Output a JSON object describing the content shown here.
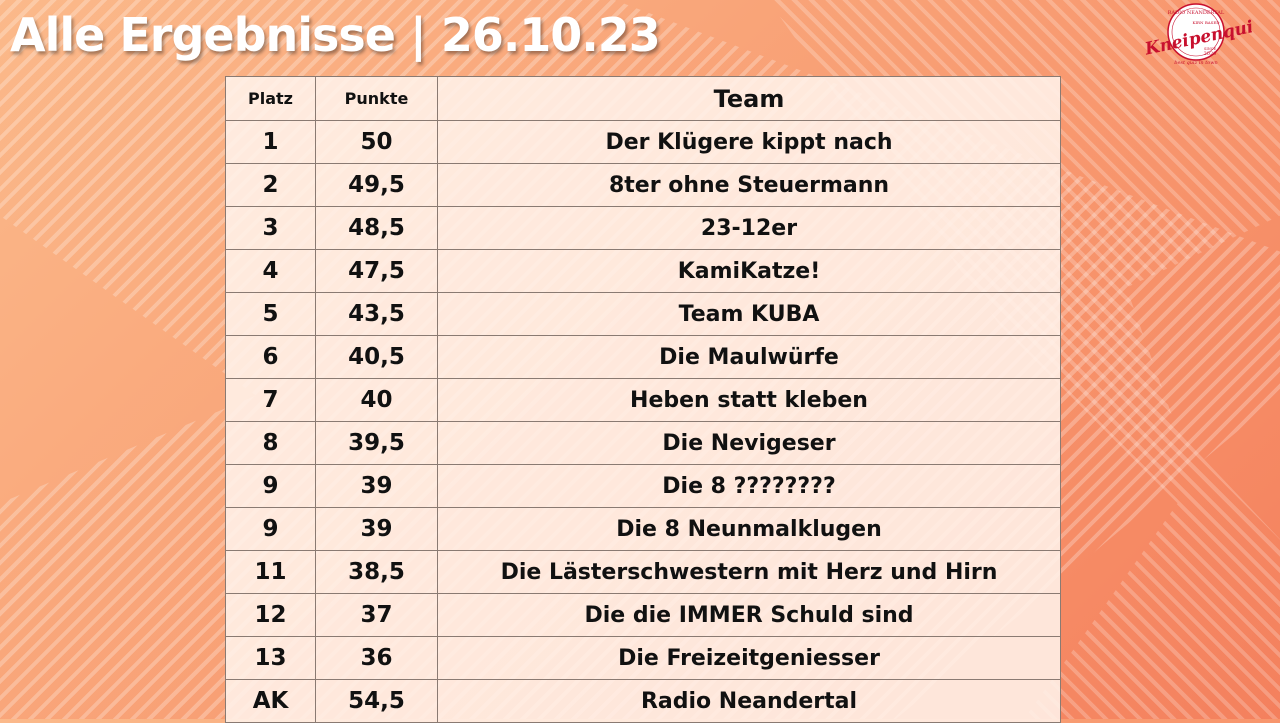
{
  "slide": {
    "title": "Alle Ergebnisse | 26.10.23"
  },
  "logo": {
    "name": "Kneipenquiz",
    "arc_top": "RADIO NEANDERTAL",
    "badge": "KIRN BASED",
    "since_label": "SINCE",
    "since_year": "2020",
    "arc_bottom": "best quiz in town"
  },
  "colors": {
    "background_light": "#fbb98a",
    "background_dark": "#f4805d",
    "logo_red": "#c8102e"
  },
  "table": {
    "headers": {
      "platz": "Platz",
      "punkte": "Punkte",
      "team": "Team"
    },
    "rows": [
      {
        "platz": "1",
        "punkte": "50",
        "team": "Der Klügere kippt nach"
      },
      {
        "platz": "2",
        "punkte": "49,5",
        "team": "8ter ohne Steuermann"
      },
      {
        "platz": "3",
        "punkte": "48,5",
        "team": "23-12er"
      },
      {
        "platz": "4",
        "punkte": "47,5",
        "team": "KamiKatze!"
      },
      {
        "platz": "5",
        "punkte": "43,5",
        "team": "Team KUBA"
      },
      {
        "platz": "6",
        "punkte": "40,5",
        "team": "Die Maulwürfe"
      },
      {
        "platz": "7",
        "punkte": "40",
        "team": "Heben statt kleben"
      },
      {
        "platz": "8",
        "punkte": "39,5",
        "team": "Die Nevigeser"
      },
      {
        "platz": "9",
        "punkte": "39",
        "team": "Die 8 ????????"
      },
      {
        "platz": "9",
        "punkte": "39",
        "team": "Die 8 Neunmalklugen"
      },
      {
        "platz": "11",
        "punkte": "38,5",
        "team": "Die Lästerschwestern mit Herz und Hirn"
      },
      {
        "platz": "12",
        "punkte": "37",
        "team": "Die die IMMER Schuld sind"
      },
      {
        "platz": "13",
        "punkte": "36",
        "team": "Die Freizeitgeniesser"
      },
      {
        "platz": "AK",
        "punkte": "54,5",
        "team": "Radio Neandertal"
      }
    ]
  }
}
